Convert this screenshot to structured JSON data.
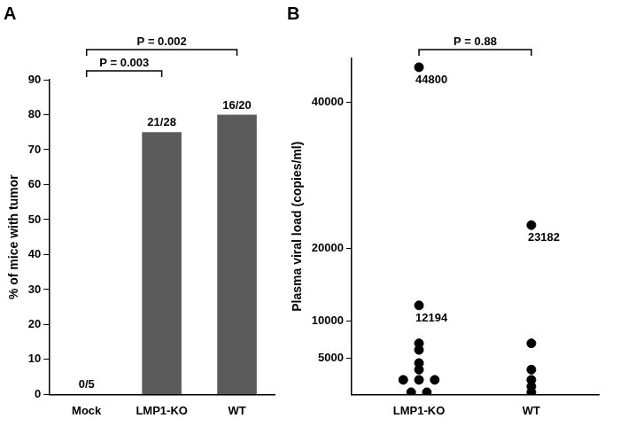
{
  "chart_data": [
    {
      "type": "bar",
      "title": "A",
      "y_label": "% of mice with tumor",
      "categories": [
        "Mock",
        "LMP1-KO",
        "WT"
      ],
      "values": [
        0,
        75,
        80
      ],
      "value_labels": [
        "0/5",
        "21/28",
        "16/20"
      ],
      "data_labels": true,
      "color": "#5a5a5a",
      "ylim": [
        0,
        90
      ],
      "yticks": [
        0,
        10,
        20,
        30,
        40,
        50,
        60,
        70,
        80,
        90
      ],
      "grid": false,
      "annotations": [
        {
          "text": "P = 0.003",
          "from": "Mock",
          "to": "LMP1-KO"
        },
        {
          "text": "P = 0.002",
          "from": "Mock",
          "to": "WT"
        }
      ]
    },
    {
      "type": "scatter",
      "title": "B",
      "y_label": "Plasma viral load (copies/ml)",
      "categories": [
        "LMP1-KO",
        "WT"
      ],
      "values": [
        [
          44800,
          12194,
          7000,
          6100,
          4300,
          3400,
          2000,
          2000,
          2000,
          300,
          300
        ],
        [
          23182,
          7000,
          3400,
          2000,
          1100,
          300
        ]
      ],
      "value_labels": [
        [
          "44800",
          "12194",
          null,
          null,
          null,
          null,
          null,
          null,
          null,
          null,
          null
        ],
        [
          "23182",
          null,
          null,
          null,
          null,
          null
        ]
      ],
      "data_labels": true,
      "color": "#000000",
      "marker": "circle",
      "ylim": [
        0,
        46000
      ],
      "yticks": [
        5000,
        10000,
        20000,
        40000
      ],
      "grid": false,
      "annotations": [
        {
          "text": "P = 0.88",
          "from": "LMP1-KO",
          "to": "WT"
        }
      ]
    }
  ]
}
